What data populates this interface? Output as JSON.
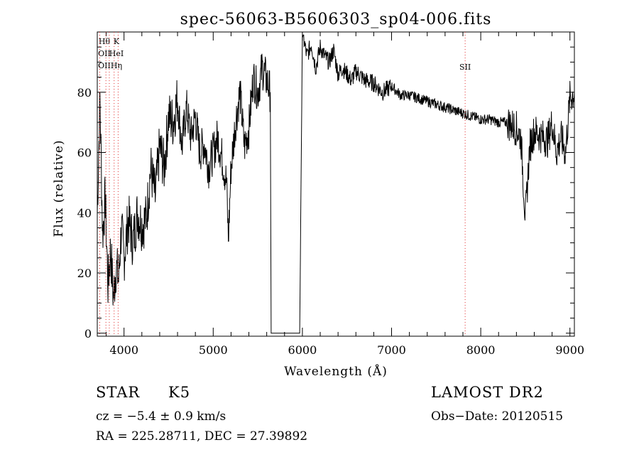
{
  "chart_data": {
    "type": "line",
    "title": "spec-56063-B5606303_sp04-006.fits",
    "xlabel": "Wavelength (Å)",
    "ylabel": "Flux (relative)",
    "xlim": [
      3700,
      9050
    ],
    "ylim": [
      -1,
      100
    ],
    "xticks": [
      4000,
      5000,
      6000,
      7000,
      8000,
      9000
    ],
    "yticks": [
      0,
      20,
      40,
      60,
      80
    ],
    "grid": false,
    "series": [
      {
        "x": [
          3700,
          3730,
          3760,
          3790,
          3820,
          3850,
          3880,
          3910,
          3940,
          3970,
          4000,
          4050,
          4100,
          4150,
          4200,
          4250,
          4300,
          4350,
          4400,
          4450,
          4500,
          4550,
          4600,
          4650,
          4700,
          4750,
          4800,
          4850,
          4900,
          4950,
          5000,
          5050,
          5100,
          5150,
          5170,
          5200,
          5250,
          5300,
          5350,
          5400,
          5450,
          5500,
          5550,
          5600,
          5640,
          5650,
          5960,
          5970,
          6000,
          6050,
          6100,
          6150,
          6200,
          6250,
          6300,
          6350,
          6400,
          6450,
          6500,
          6550,
          6600,
          6700,
          6800,
          6900,
          7000,
          7100,
          7200,
          7300,
          7400,
          7500,
          7600,
          7700,
          7800,
          7900,
          8000,
          8100,
          8200,
          8300,
          8400,
          8450,
          8500,
          8550,
          8600,
          8650,
          8700,
          8750,
          8800,
          8850,
          8900,
          8950,
          9000,
          9050
        ],
        "y": [
          40,
          78,
          33,
          45,
          16,
          28,
          12,
          22,
          18,
          35,
          25,
          38,
          30,
          40,
          36,
          38,
          55,
          45,
          62,
          55,
          72,
          70,
          78,
          62,
          75,
          65,
          72,
          60,
          63,
          55,
          60,
          65,
          58,
          50,
          31,
          55,
          70,
          80,
          62,
          68,
          85,
          80,
          88,
          84,
          80,
          0,
          0,
          0,
          100,
          92,
          96,
          88,
          95,
          92,
          90,
          94,
          86,
          88,
          86,
          84,
          87,
          84,
          83,
          80,
          82,
          79,
          79,
          78,
          77,
          76,
          75,
          74,
          73,
          72,
          71,
          71,
          70,
          70,
          68,
          65,
          38,
          62,
          67,
          66,
          65,
          64,
          70,
          60,
          65,
          60,
          78,
          80
        ]
      }
    ],
    "annotations": [
      {
        "label": "Hθ",
        "x": 3797
      },
      {
        "label": "K",
        "x": 3934
      },
      {
        "label": "OII",
        "x": 3727
      },
      {
        "label": "HeI",
        "x": 3889
      },
      {
        "label": "OII",
        "x": 3727
      },
      {
        "label": "Hη",
        "x": 3835
      },
      {
        "label": "SII",
        "x": 7825
      }
    ]
  },
  "info": {
    "object_class": "STAR",
    "subclass": "K5",
    "cz": "cz = −5.4 ± 0.9 km/s",
    "coords": "RA = 225.28711, DEC =  27.39892",
    "survey": "LAMOST DR2",
    "obs_date": "Obs−Date: 20120515"
  }
}
